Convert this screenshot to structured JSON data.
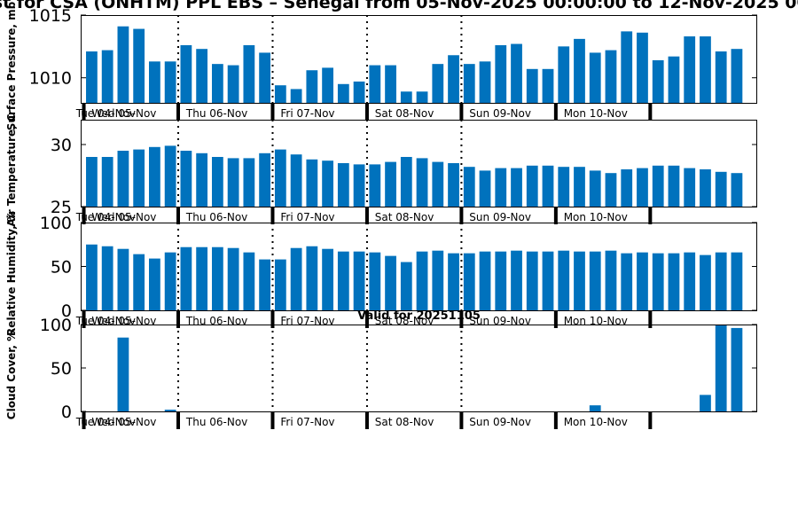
{
  "figure": {
    "title": "Forecast for CSA (ONHTM) PPL EBS  – Senegal from 05-Nov-2025 00:00:00 to 12-Nov-2025 00:00:00",
    "bar_color": "#0072BD",
    "axis_color": "#000000",
    "background": "#ffffff"
  },
  "chart_data": [
    {
      "type": "bar",
      "title": "",
      "ylabel": "Surface Pressure, mb",
      "ylim": [
        1008,
        1015
      ],
      "yticks": [
        1010,
        1015
      ],
      "xlim": [
        -0.7,
        42.3
      ],
      "x_tick_labels": [
        "Tue 04-Nov",
        "Wed 05-Nov",
        "Thu 06-Nov",
        "Fri 07-Nov",
        "Sat 08-Nov",
        "Sun 09-Nov",
        "Mon 10-Nov"
      ],
      "x_tick_positions": [
        -1,
        0,
        6,
        12,
        18,
        24,
        30
      ],
      "day_boundaries": [
        -0.5,
        5.5,
        11.5,
        17.5,
        23.5,
        29.5,
        35.5
      ],
      "dotted_lines": [
        5.5,
        11.5,
        17.5,
        23.5
      ],
      "values": [
        1012.1,
        1012.2,
        1014.1,
        1013.9,
        1011.3,
        1011.3,
        1012.6,
        1012.3,
        1011.1,
        1011.0,
        1012.6,
        1012.0,
        1009.4,
        1009.1,
        1010.6,
        1010.8,
        1009.5,
        1009.7,
        1011.0,
        1011.0,
        1008.9,
        1008.9,
        1011.1,
        1011.8,
        1011.1,
        1011.3,
        1012.6,
        1012.7,
        1010.7,
        1010.7,
        1012.5,
        1013.1,
        1012.0,
        1012.2,
        1013.7,
        1013.6,
        1011.4,
        1011.7,
        1013.3,
        1013.3,
        1012.1,
        1012.3
      ]
    },
    {
      "type": "bar",
      "title": "",
      "ylabel": "Air Temperature, C",
      "ylim": [
        25,
        32
      ],
      "yticks": [
        25,
        30
      ],
      "xlim": [
        -0.7,
        42.3
      ],
      "x_tick_labels": [
        "Tue 04-Nov",
        "Wed 05-Nov",
        "Thu 06-Nov",
        "Fri 07-Nov",
        "Sat 08-Nov",
        "Sun 09-Nov",
        "Mon 10-Nov"
      ],
      "x_tick_positions": [
        -1,
        0,
        6,
        12,
        18,
        24,
        30
      ],
      "day_boundaries": [
        -0.5,
        5.5,
        11.5,
        17.5,
        23.5,
        29.5,
        35.5
      ],
      "dotted_lines": [
        5.5,
        11.5,
        17.5,
        23.5
      ],
      "values": [
        29.0,
        29.0,
        29.5,
        29.6,
        29.8,
        29.9,
        29.5,
        29.3,
        29.0,
        28.9,
        28.9,
        29.3,
        29.6,
        29.2,
        28.8,
        28.7,
        28.5,
        28.4,
        28.4,
        28.6,
        29.0,
        28.9,
        28.6,
        28.5,
        28.2,
        27.9,
        28.1,
        28.1,
        28.3,
        28.3,
        28.2,
        28.2,
        27.9,
        27.7,
        28.0,
        28.1,
        28.3,
        28.3,
        28.1,
        28.0,
        27.8,
        27.7
      ]
    },
    {
      "type": "bar",
      "title": "",
      "ylabel": "Relative Humidity, %",
      "ylim": [
        0,
        100
      ],
      "yticks": [
        0,
        50,
        100
      ],
      "xlim": [
        -0.7,
        42.3
      ],
      "x_tick_labels": [
        "Tue 04-Nov",
        "Wed 05-Nov",
        "Thu 06-Nov",
        "Fri 07-Nov",
        "Sat 08-Nov",
        "Sun 09-Nov",
        "Mon 10-Nov"
      ],
      "x_tick_positions": [
        -1,
        0,
        6,
        12,
        18,
        24,
        30
      ],
      "day_boundaries": [
        -0.5,
        5.5,
        11.5,
        17.5,
        23.5,
        29.5,
        35.5
      ],
      "dotted_lines": [
        5.5,
        11.5,
        17.5,
        23.5
      ],
      "values": [
        75,
        73,
        70,
        64,
        59,
        66,
        72,
        72,
        72,
        71,
        66,
        58,
        58,
        71,
        73,
        70,
        67,
        67,
        66,
        62,
        55,
        67,
        68,
        65,
        65,
        67,
        67,
        68,
        67,
        67,
        68,
        67,
        67,
        68,
        65,
        66,
        65,
        65,
        66,
        63,
        66,
        66
      ]
    },
    {
      "type": "bar",
      "title": "Valid for 20251105",
      "ylabel": "Cloud Cover, %",
      "ylim": [
        0,
        100
      ],
      "yticks": [
        0,
        50,
        100
      ],
      "xlim": [
        -0.7,
        42.3
      ],
      "x_tick_labels": [
        "Tue 04-Nov",
        "Wed 05-Nov",
        "Thu 06-Nov",
        "Fri 07-Nov",
        "Sat 08-Nov",
        "Sun 09-Nov",
        "Mon 10-Nov"
      ],
      "x_tick_positions": [
        -1,
        0,
        6,
        12,
        18,
        24,
        30
      ],
      "day_boundaries": [
        -0.5,
        5.5,
        11.5,
        17.5,
        23.5,
        29.5,
        35.5
      ],
      "dotted_lines": [
        5.5,
        11.5,
        17.5,
        23.5
      ],
      "values": [
        0,
        0,
        85,
        0,
        0,
        2,
        0,
        0,
        0,
        0,
        0,
        0,
        0,
        0,
        0,
        0,
        0,
        0,
        0,
        0,
        0,
        0,
        0,
        0,
        0,
        0,
        0,
        0,
        0,
        0,
        0,
        0,
        7,
        0,
        0,
        0,
        0,
        0,
        0,
        19,
        100,
        96
      ]
    }
  ]
}
